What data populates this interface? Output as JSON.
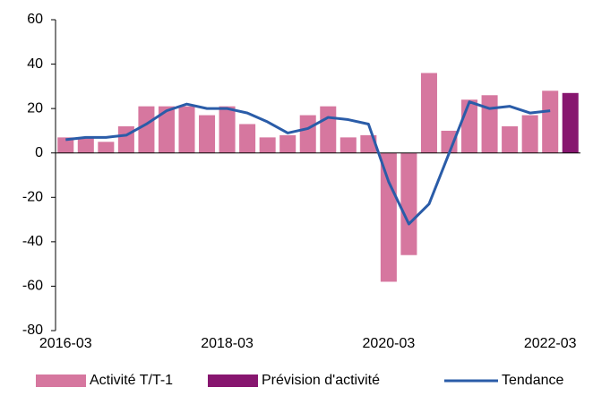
{
  "chart_data": {
    "type": "bar",
    "categories": [
      "2016-03",
      null,
      null,
      null,
      null,
      null,
      null,
      null,
      "2018-03",
      null,
      null,
      null,
      null,
      null,
      null,
      null,
      "2020-03",
      null,
      null,
      null,
      null,
      null,
      null,
      null,
      "2022-03",
      null
    ],
    "series": [
      {
        "name": "Activité T/T-1",
        "type": "bar",
        "color": "#d6779f",
        "values": [
          7,
          7,
          5,
          12,
          21,
          21,
          21,
          17,
          21,
          13,
          7,
          8,
          17,
          21,
          7,
          8,
          -58,
          -46,
          36,
          10,
          24,
          26,
          12,
          17,
          28,
          null
        ]
      },
      {
        "name": "Prévision d'activité",
        "type": "bar",
        "color": "#87166f",
        "values": [
          null,
          null,
          null,
          null,
          null,
          null,
          null,
          null,
          null,
          null,
          null,
          null,
          null,
          null,
          null,
          null,
          null,
          null,
          null,
          null,
          null,
          null,
          null,
          null,
          null,
          27
        ]
      },
      {
        "name": "Tendance",
        "type": "line",
        "color": "#2a5ca8",
        "values": [
          6,
          7,
          7,
          8,
          13,
          19,
          22,
          20,
          20,
          18,
          14,
          9,
          11,
          16,
          15,
          13,
          -13,
          -32,
          -23,
          0,
          23,
          20,
          21,
          18,
          19,
          null
        ]
      }
    ],
    "ylim": [
      -80,
      60
    ],
    "yticks": [
      -80,
      -60,
      -40,
      -20,
      0,
      20,
      40,
      60
    ],
    "grid": false,
    "legend": "bottom"
  }
}
